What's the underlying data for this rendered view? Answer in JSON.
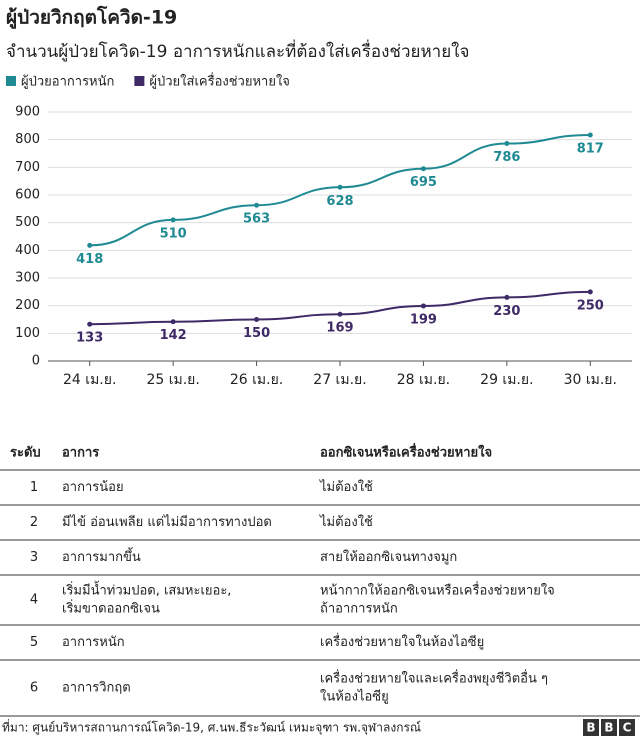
{
  "chart_data": {
    "type": "line",
    "title": "ผู้ป่วยวิกฤตโควิด-19",
    "subtitle": "จำนวนผู้ป่วยโควิด-19 อาการหนักและที่ต้องใส่เครื่องช่วยหายใจ",
    "categories": [
      "24 เม.ย.",
      "25 เม.ย.",
      "26 เม.ย.",
      "27 เม.ย.",
      "28 เม.ย.",
      "29 เม.ย.",
      "30 เม.ย."
    ],
    "series": [
      {
        "name": "ผู้ป่วยอาการหนัก",
        "color": "#1f8a93",
        "values": [
          418,
          510,
          563,
          628,
          695,
          786,
          817
        ]
      },
      {
        "name": "ผู้ป่วยใส่เครื่องช่วยหายใจ",
        "color": "#3e2a66",
        "values": [
          133,
          142,
          150,
          169,
          199,
          230,
          250
        ]
      }
    ],
    "ylim": [
      0,
      900
    ],
    "yticks": [
      0,
      100,
      200,
      300,
      400,
      500,
      600,
      700,
      800,
      900
    ],
    "grid": true,
    "legend": "top-left"
  },
  "table": {
    "header": [
      "ระดับ",
      "อาการ",
      "ออกซิเจนหรือเครื่องช่วยหายใจ"
    ],
    "rows": [
      [
        [
          "1"
        ],
        [
          "อาการน้อย"
        ],
        [
          "ไม่ต้องใช้"
        ]
      ],
      [
        [
          "2"
        ],
        [
          "มีไข้ อ่อนเพลีย แต่ไม่มีอาการทางปอด"
        ],
        [
          "ไม่ต้องใช้"
        ]
      ],
      [
        [
          "3"
        ],
        [
          "อาการมากขึ้น"
        ],
        [
          "สายให้ออกซิเจนทางจมูก"
        ]
      ],
      [
        [
          "4"
        ],
        [
          "เริ่มมีน้ำท่วมปอด, เสมหะเยอะ,",
          "เริ่มขาดออกซิเจน"
        ],
        [
          "หน้ากากให้ออกซิเจนหรือเครื่องช่วยหายใจ",
          "ถ้าอาการหนัก"
        ]
      ],
      [
        [
          "5"
        ],
        [
          "อาการหนัก"
        ],
        [
          "เครื่องช่วยหายใจในห้องไอซียู"
        ]
      ],
      [
        [
          "6"
        ],
        [
          "อาการวิกฤต"
        ],
        [
          "เครื่องช่วยหายใจและเครื่องพยุงชีวิตอื่น ๆ",
          "ในห้องไอซียู"
        ]
      ]
    ]
  },
  "footer": {
    "source": "ที่มา: ศูนย์บริหารสถานการณ์โควิด-19, ศ.นพ.ธีระวัฒน์ เหมะจุฑา รพ.จุฬาลงกรณ์",
    "logo": [
      "B",
      "B",
      "C"
    ]
  }
}
